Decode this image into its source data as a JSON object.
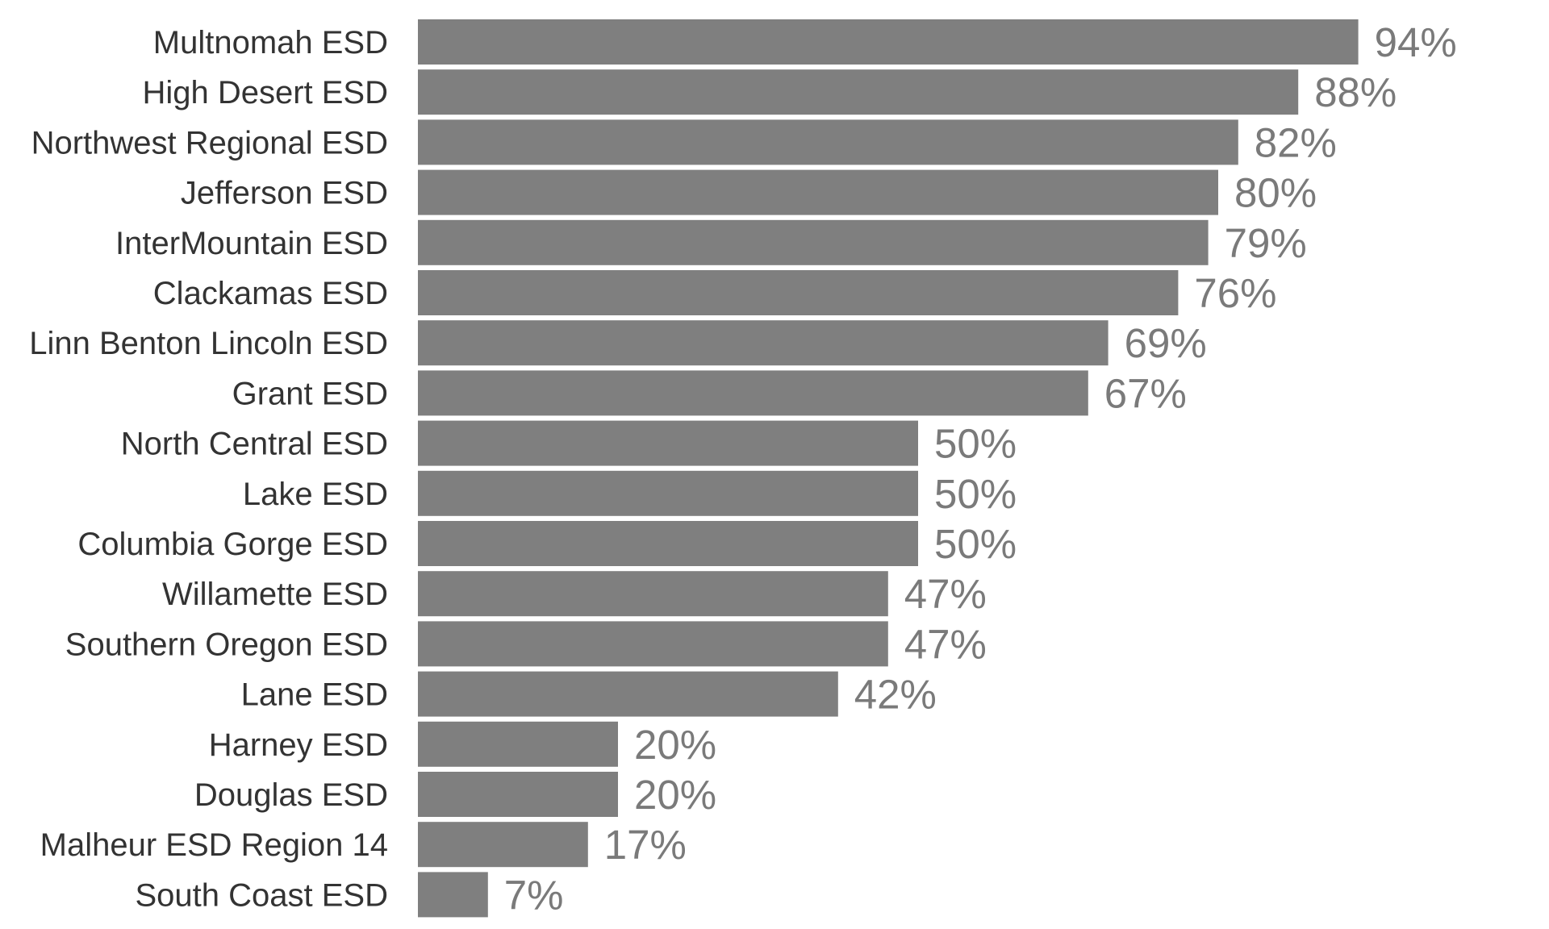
{
  "chart_data": {
    "type": "bar",
    "orientation": "horizontal",
    "categories": [
      "Multnomah ESD",
      "High Desert ESD",
      "Northwest Regional ESD",
      "Jefferson ESD",
      "InterMountain ESD",
      "Clackamas ESD",
      "Linn Benton Lincoln ESD",
      "Grant ESD",
      "North Central ESD",
      "Lake ESD",
      "Columbia Gorge ESD",
      "Willamette ESD",
      "Southern Oregon ESD",
      "Lane ESD",
      "Harney ESD",
      "Douglas ESD",
      "Malheur ESD Region 14",
      "South Coast ESD"
    ],
    "values": [
      94,
      88,
      82,
      80,
      79,
      76,
      69,
      67,
      50,
      50,
      50,
      47,
      47,
      42,
      20,
      20,
      17,
      7
    ],
    "value_labels": [
      "94%",
      "88%",
      "82%",
      "80%",
      "79%",
      "76%",
      "69%",
      "67%",
      "50%",
      "50%",
      "50%",
      "47%",
      "47%",
      "42%",
      "20%",
      "20%",
      "17%",
      "7%"
    ],
    "title": "",
    "xlabel": "",
    "ylabel": "",
    "xlim": [
      0,
      100
    ],
    "grid": false,
    "legend": "none",
    "colors": {
      "bar": "#7f7f7f",
      "category_text": "#333333",
      "value_text": "#7a7a7a",
      "background": "#ffffff"
    }
  }
}
